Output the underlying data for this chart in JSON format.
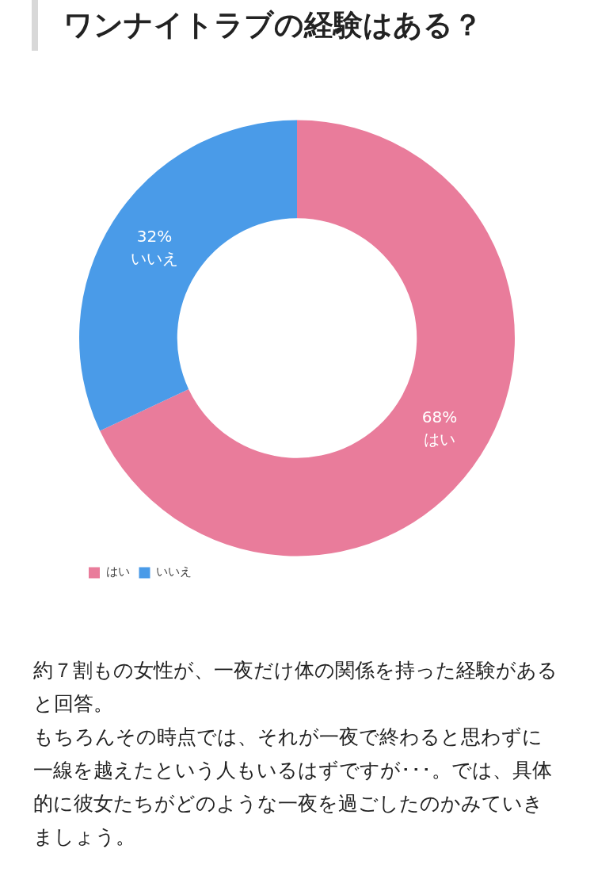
{
  "chart_data": {
    "type": "donut",
    "title": "ワンナイトラブの経験はある？",
    "categories": [
      "はい",
      "いいえ"
    ],
    "values": [
      68,
      32
    ],
    "colors": [
      "#e97c9b",
      "#4a9be8"
    ],
    "value_labels": [
      "68%",
      "32%"
    ],
    "legend": "bottom left",
    "annotations": [
      "約７割もの女性が、一夜だけ体の関係を持った経験があると回答。",
      "もちろんその時点では、それが一夜で終わると思わずに一線を越えたという人もいるはずですが･･･。では、具体的に彼女たちがどのような一夜を過ごしたのかみていきましょう。"
    ]
  }
}
